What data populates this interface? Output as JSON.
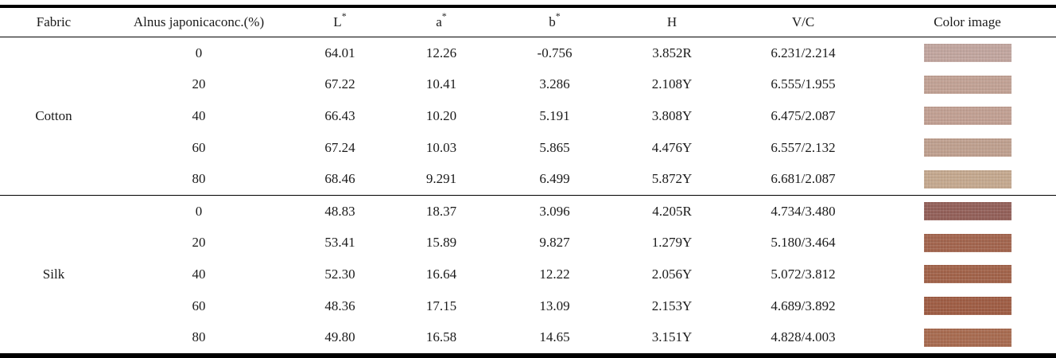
{
  "table": {
    "columns": [
      {
        "key": "fabric",
        "label": "Fabric"
      },
      {
        "key": "conc",
        "label": "Alnus japonicaconc.(%)"
      },
      {
        "key": "L",
        "label": "L",
        "sup": "*"
      },
      {
        "key": "a",
        "label": "a",
        "sup": "*"
      },
      {
        "key": "b",
        "label": "b",
        "sup": "*"
      },
      {
        "key": "H",
        "label": "H"
      },
      {
        "key": "VC",
        "label": "V/C"
      },
      {
        "key": "color_image",
        "label": "Color image"
      }
    ],
    "groups": [
      {
        "fabric": "Cotton",
        "rows": [
          {
            "conc": "0",
            "L": "64.01",
            "a": "12.26",
            "b": "-0.756",
            "H": "3.852R",
            "VC": "6.231/2.214",
            "swatch_color": "#c2a69f"
          },
          {
            "conc": "20",
            "L": "67.22",
            "a": "10.41",
            "b": "3.286",
            "H": "2.108Y",
            "VC": "6.555/1.955",
            "swatch_color": "#c2a295"
          },
          {
            "conc": "40",
            "L": "66.43",
            "a": "10.20",
            "b": "5.191",
            "H": "3.808Y",
            "VC": "6.475/2.087",
            "swatch_color": "#c2a093"
          },
          {
            "conc": "60",
            "L": "67.24",
            "a": "10.03",
            "b": "5.865",
            "H": "4.476Y",
            "VC": "6.557/2.132",
            "swatch_color": "#bfa08f"
          },
          {
            "conc": "80",
            "L": "68.46",
            "a": "9.291",
            "b": "6.499",
            "H": "5.872Y",
            "VC": "6.681/2.087",
            "swatch_color": "#c5a98f"
          }
        ]
      },
      {
        "fabric": "Silk",
        "rows": [
          {
            "conc": "0",
            "L": "48.83",
            "a": "18.37",
            "b": "3.096",
            "H": "4.205R",
            "VC": "4.734/3.480",
            "swatch_color": "#936059"
          },
          {
            "conc": "20",
            "L": "53.41",
            "a": "15.89",
            "b": "9.827",
            "H": "1.279Y",
            "VC": "5.180/3.464",
            "swatch_color": "#a3654e"
          },
          {
            "conc": "40",
            "L": "52.30",
            "a": "16.64",
            "b": "12.22",
            "H": "2.056Y",
            "VC": "5.072/3.812",
            "swatch_color": "#a2634a"
          },
          {
            "conc": "60",
            "L": "48.36",
            "a": "17.15",
            "b": "13.09",
            "H": "2.153Y",
            "VC": "4.689/3.892",
            "swatch_color": "#9f5d44"
          },
          {
            "conc": "80",
            "L": "49.80",
            "a": "16.58",
            "b": "14.65",
            "H": "3.151Y",
            "VC": "4.828/4.003",
            "swatch_color": "#a86b50"
          }
        ]
      }
    ]
  },
  "colors": {
    "border": "#000000",
    "text": "#1a1a1a",
    "background": "#ffffff"
  }
}
